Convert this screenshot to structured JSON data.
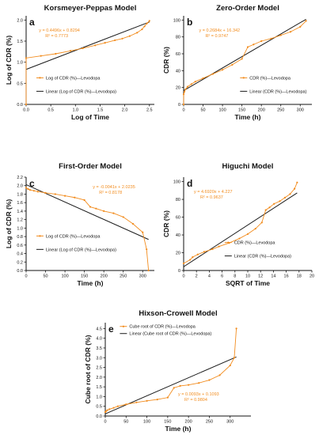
{
  "colors": {
    "data": "#f28c1e",
    "fit": "#1a1a1a",
    "axis": "#111111"
  },
  "chart_data": [
    {
      "letter": "a",
      "type": "line",
      "title": "Korsmeyer-Peppas Model",
      "xlabel": "Log of Time",
      "ylabel": "Log of CDR (%)",
      "xlim": [
        0,
        2.6
      ],
      "ylim": [
        0,
        2.1
      ],
      "xticks": [
        "0.0",
        "0.5",
        "1.0",
        "1.5",
        "2.0",
        "2.5"
      ],
      "yticks": [
        "0.0",
        "0.5",
        "1.0",
        "1.5",
        "2.0"
      ],
      "equation": "y = 0.4496x + 0.8294",
      "r2": "R² = 0.7773",
      "legend": [
        "Log of CDR (%)—Levodopa",
        "Linear (Log of CDR (%)—Levodopa)"
      ],
      "series": [
        {
          "x": [
            0,
            0.0,
            0.3,
            0.6,
            0.9,
            1.15,
            1.4,
            1.6,
            1.8,
            1.95,
            2.1,
            2.25,
            2.35,
            2.4,
            2.45,
            2.5
          ],
          "y": [
            0,
            1.1,
            1.15,
            1.2,
            1.27,
            1.33,
            1.4,
            1.46,
            1.52,
            1.56,
            1.62,
            1.7,
            1.78,
            1.85,
            1.92,
            1.98
          ]
        }
      ],
      "fit": {
        "slope": 0.4496,
        "intercept": 0.8294,
        "x": [
          0,
          2.5
        ]
      }
    },
    {
      "letter": "b",
      "type": "line",
      "title": "Zero-Order Model",
      "xlabel": "Time (h)",
      "ylabel": "CDR (%)",
      "xlim": [
        0,
        330
      ],
      "ylim": [
        0,
        105
      ],
      "xticks": [
        "0",
        "50",
        "100",
        "150",
        "200",
        "250",
        "300"
      ],
      "yticks": [
        "0",
        "20",
        "40",
        "60",
        "80",
        "100"
      ],
      "equation": "y = 0.2684x + 16.342",
      "r2": "R² = 0.9747",
      "legend": [
        "CDR (%)—Levodopa",
        "Linear (CDR (%)—Levodopa)"
      ],
      "series": [
        {
          "x": [
            0,
            0,
            2,
            5,
            10,
            20,
            30,
            50,
            75,
            100,
            125,
            150,
            165,
            180,
            200,
            225,
            250,
            275,
            300,
            315
          ],
          "y": [
            0,
            12,
            15,
            18,
            21,
            24,
            27,
            31,
            36,
            41,
            47,
            54,
            68,
            71,
            75,
            78,
            82,
            86,
            92,
            99
          ]
        }
      ],
      "fit": {
        "slope": 0.2684,
        "intercept": 16.342,
        "x": [
          0,
          315
        ]
      }
    },
    {
      "letter": "c",
      "type": "line",
      "title": "First-Order Model",
      "xlabel": "Time (h)",
      "ylabel": "Log of CDR (%)",
      "xlim": [
        0,
        330
      ],
      "ylim": [
        0,
        2.2
      ],
      "xticks": [
        "0",
        "50",
        "100",
        "150",
        "200",
        "250",
        "300"
      ],
      "yticks": [
        "0.0",
        "0.2",
        "0.4",
        "0.6",
        "0.8",
        "1.0",
        "1.2",
        "1.4",
        "1.6",
        "1.8",
        "2.0",
        "2.2"
      ],
      "equation": "y = -0.0041x + 2.0235",
      "r2": "R² = 0.8178",
      "legend": [
        "Log of CDR (%)—Levodopa",
        "Linear (Log of CDR (%)—Levodopa)"
      ],
      "series": [
        {
          "x": [
            0,
            5,
            10,
            20,
            30,
            50,
            75,
            100,
            125,
            150,
            165,
            180,
            200,
            225,
            250,
            275,
            300,
            310,
            315
          ],
          "y": [
            1.95,
            1.92,
            1.9,
            1.88,
            1.86,
            1.83,
            1.8,
            1.76,
            1.72,
            1.66,
            1.5,
            1.46,
            1.4,
            1.35,
            1.26,
            1.1,
            0.9,
            0.5,
            0.0
          ]
        }
      ],
      "fit": {
        "slope": -0.0041,
        "intercept": 2.0235,
        "x": [
          0,
          315
        ]
      }
    },
    {
      "letter": "d",
      "type": "line",
      "title": "Higuchi Model",
      "xlabel": "SQRT of Time",
      "ylabel": "CDR (%)",
      "xlim": [
        0,
        20
      ],
      "ylim": [
        0,
        105
      ],
      "xticks": [
        "0",
        "2",
        "4",
        "6",
        "8",
        "10",
        "12",
        "14",
        "16",
        "18",
        "20"
      ],
      "yticks": [
        "0",
        "20",
        "40",
        "60",
        "80",
        "100"
      ],
      "equation": "y = 4.6920x + 4.227",
      "r2": "R² = 0.9637",
      "legend": [
        "CDR (%)—Levodopa",
        "Linear (CDR (%)—Levodopa)"
      ],
      "series": [
        {
          "x": [
            0,
            1,
            1.4,
            2.2,
            3.2,
            4.5,
            5.5,
            7.1,
            8.7,
            10,
            11.2,
            12.2,
            12.8,
            13.4,
            14.1,
            15,
            15.8,
            16.6,
            17.3,
            17.7
          ],
          "y": [
            8,
            12,
            15,
            18,
            21,
            24,
            27,
            31,
            36,
            41,
            47,
            54,
            68,
            71,
            75,
            78,
            82,
            86,
            92,
            99
          ]
        }
      ],
      "fit": {
        "slope": 4.692,
        "intercept": 4.227,
        "x": [
          0,
          17.7
        ]
      }
    },
    {
      "letter": "e",
      "type": "line",
      "title": "Hixson-Crowell Model",
      "xlabel": "Time (h)",
      "ylabel": "Cube root of CDR (%)",
      "xlim": [
        0,
        350
      ],
      "ylim": [
        0,
        4.8
      ],
      "xticks": [
        "0",
        "50",
        "100",
        "150",
        "200",
        "250",
        "300"
      ],
      "yticks": [
        "0.0",
        "0.5",
        "1.0",
        "1.5",
        "2.0",
        "2.5",
        "3.0",
        "3.5",
        "4.0",
        "4.5"
      ],
      "equation": "y = 0.0093x + 0.1093",
      "r2": "R² = 0.9804",
      "legend": [
        "Cube root of CDR (%)—Levodopa",
        "Linear (Cube root of CDR (%)—Levodopa)"
      ],
      "series": [
        {
          "x": [
            0,
            2,
            5,
            10,
            20,
            30,
            50,
            75,
            100,
            125,
            150,
            165,
            180,
            200,
            225,
            250,
            275,
            300,
            310,
            315
          ],
          "y": [
            0.2,
            0.25,
            0.3,
            0.35,
            0.42,
            0.5,
            0.6,
            0.7,
            0.78,
            0.85,
            0.95,
            1.45,
            1.55,
            1.6,
            1.7,
            1.85,
            2.1,
            2.6,
            3.0,
            4.5
          ]
        }
      ],
      "fit": {
        "slope": 0.0093,
        "intercept": 0.1093,
        "x": [
          0,
          315
        ]
      }
    }
  ]
}
